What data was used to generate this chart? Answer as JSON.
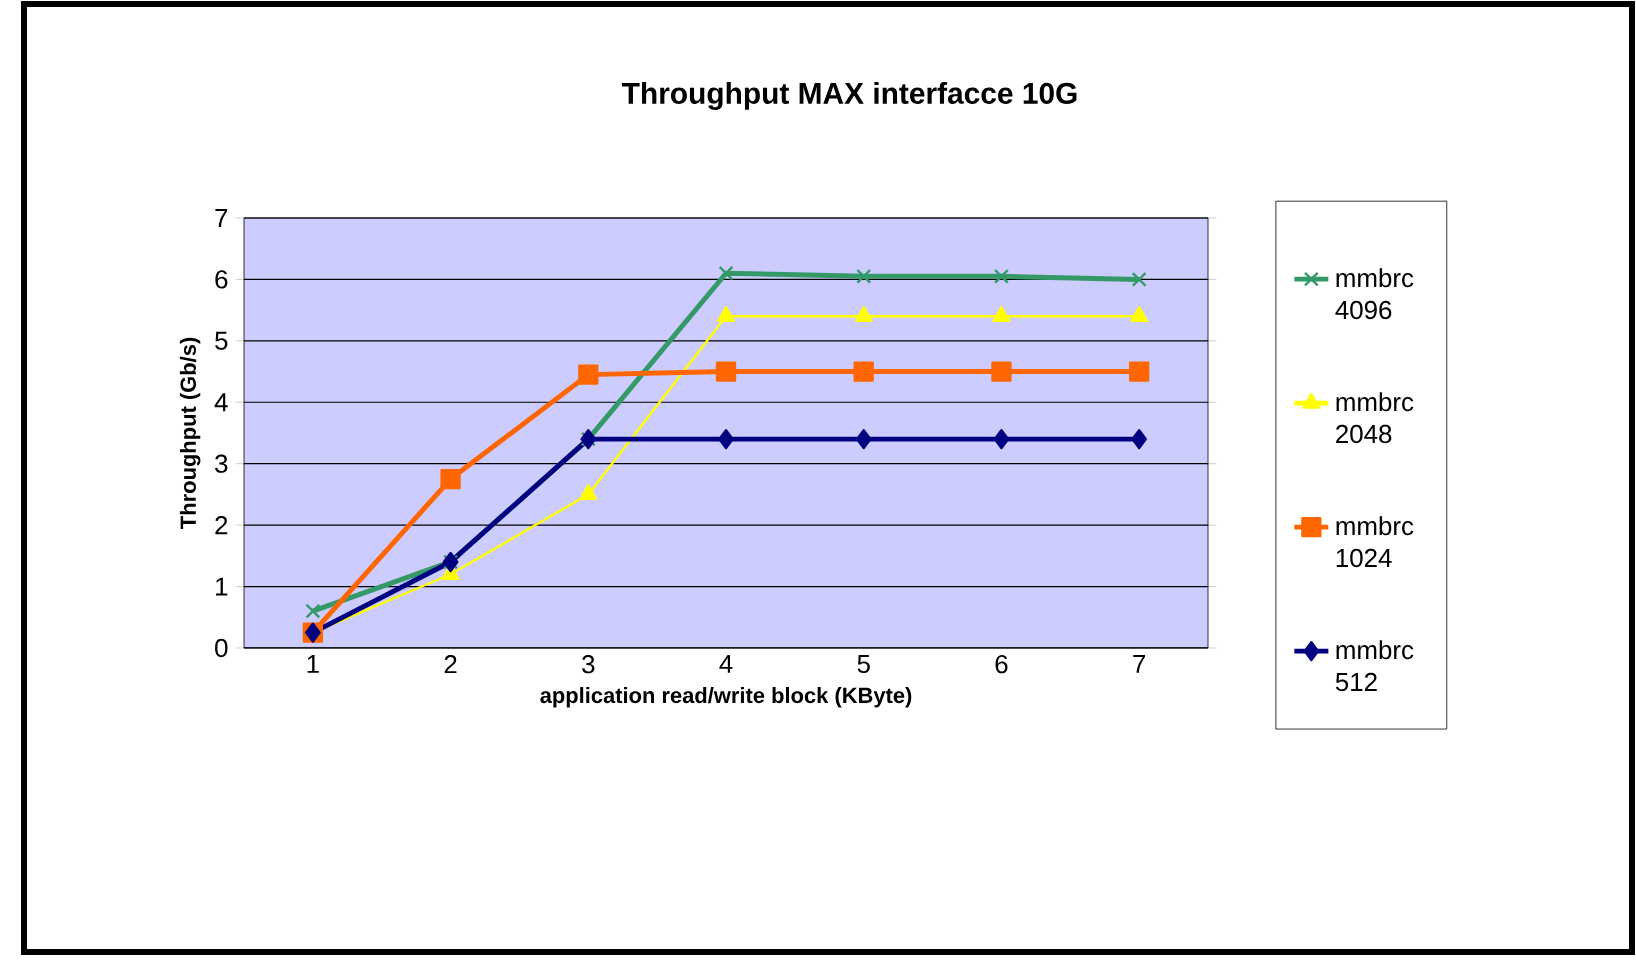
{
  "chart_data": {
    "type": "line",
    "title": "Throughput MAX interfacce 10G",
    "xlabel": "application read/write block (KByte)",
    "ylabel": "Throughput (Gb/s)",
    "categories": [
      "1",
      "2",
      "3",
      "4",
      "5",
      "6",
      "7"
    ],
    "series": [
      {
        "name": "mmbrc 4096",
        "color": "#339966",
        "marker": "cross",
        "values": [
          0.6,
          1.4,
          3.4,
          6.1,
          6.05,
          6.05,
          6.0
        ]
      },
      {
        "name": "mmbrc 2048",
        "color": "#ffff00",
        "marker": "triangle",
        "values": [
          0.25,
          1.2,
          2.5,
          5.4,
          5.4,
          5.4,
          5.4
        ]
      },
      {
        "name": "mmbrc 1024",
        "color": "#ff6600",
        "marker": "square",
        "values": [
          0.25,
          2.75,
          4.45,
          4.5,
          4.5,
          4.5,
          4.5
        ]
      },
      {
        "name": "mmbrc 512",
        "color": "#000080",
        "marker": "diamond",
        "values": [
          0.25,
          1.4,
          3.4,
          3.4,
          3.4,
          3.4,
          3.4
        ]
      }
    ],
    "ylim": [
      0,
      7
    ],
    "yticks": [
      0,
      1,
      2,
      3,
      4,
      5,
      6,
      7
    ],
    "grid": "y",
    "legend": "right"
  }
}
